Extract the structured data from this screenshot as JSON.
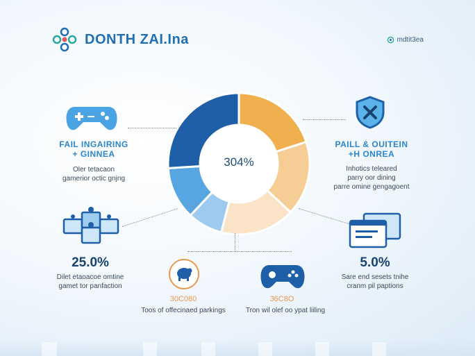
{
  "header": {
    "title": "DONTH ZAI.Ina",
    "right_label": "mdtit3ea"
  },
  "chart_data": {
    "type": "pie",
    "center_label": "304%",
    "slices": [
      {
        "color": "#f0b04e",
        "value": 20
      },
      {
        "color": "#f6cd95",
        "value": 17
      },
      {
        "color": "#fae3c6",
        "value": 17
      },
      {
        "color": "#9ccbef",
        "value": 8
      },
      {
        "color": "#57a6e2",
        "value": 12
      },
      {
        "color": "#1f5fa8",
        "value": 26
      }
    ]
  },
  "items": {
    "top_left": {
      "icon": "gamepad-icon",
      "head1": "FAIL INGAIRING",
      "head2": "+ GINNEA",
      "sub1": "Oler tetacaon",
      "sub2": "gamerior octic gnjng"
    },
    "top_right": {
      "icon": "shield-x-icon",
      "head1": "PAILL & OUITEIN",
      "head2": "+H ONREA",
      "sub1": "Inhotics teleared",
      "sub2": "parry oor dining",
      "sub3": "parre omine gengagoent"
    },
    "mid_left": {
      "icon": "network-icon",
      "value": "25.0%",
      "sub1": "Dilet etaoacoe omtine",
      "sub2": "gamet tor panfaction"
    },
    "mid_right": {
      "icon": "windows-icon",
      "value": "5.0%",
      "sub1": "Sare end sesets tnihe",
      "sub2": "cranm pil paptions"
    },
    "bottom_left": {
      "icon": "piggy-icon",
      "value": "30C080",
      "sub": "Toos of offecinaed parkings"
    },
    "bottom_right": {
      "icon": "controller-icon",
      "value": "36C8O",
      "sub": "Tron wil olef oo ypat liiling"
    }
  },
  "colors": {
    "accent": "#1f6fb5",
    "orange": "#f0b04e",
    "navy": "#17436f"
  }
}
